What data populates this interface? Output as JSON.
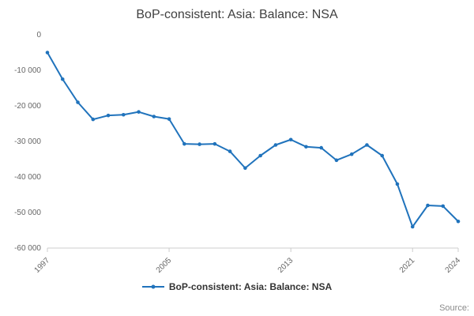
{
  "page": {
    "title": "BoP-consistent: Asia: Balance: NSA"
  },
  "chart_data": {
    "type": "line",
    "title": "BoP-consistent: Asia: Balance: NSA",
    "xlabel": "",
    "ylabel": "",
    "xlim": [
      1997,
      2024
    ],
    "ylim": [
      -60000,
      0
    ],
    "yticks": [
      0,
      -10000,
      -20000,
      -30000,
      -40000,
      -50000,
      -60000
    ],
    "ytick_labels": [
      "0",
      "-10 000",
      "-20 000",
      "-30 000",
      "-40 000",
      "-50 000",
      "-60 000"
    ],
    "xticks": [
      1997,
      2005,
      2013,
      2021,
      2024
    ],
    "grid": false,
    "legend_position": "bottom",
    "series": [
      {
        "name": "BoP-consistent: Asia: Balance: NSA",
        "color": "#2073bc",
        "x": [
          1997,
          1998,
          1999,
          2000,
          2001,
          2002,
          2003,
          2004,
          2005,
          2006,
          2007,
          2008,
          2009,
          2010,
          2011,
          2012,
          2013,
          2014,
          2015,
          2016,
          2017,
          2018,
          2019,
          2020,
          2021,
          2022,
          2023,
          2024
        ],
        "values": [
          -5000,
          -12500,
          -19000,
          -23800,
          -22700,
          -22500,
          -21700,
          -23000,
          -23700,
          -30700,
          -30800,
          -30700,
          -32800,
          -37500,
          -34000,
          -31000,
          -29500,
          -31500,
          -31800,
          -35300,
          -33600,
          -31000,
          -34000,
          -42000,
          -54000,
          -48000,
          -48200,
          -52500
        ]
      }
    ]
  },
  "axis_colors": {
    "axis_line": "#cccccc",
    "tick_label": "#666666"
  },
  "source_label": "Source:"
}
